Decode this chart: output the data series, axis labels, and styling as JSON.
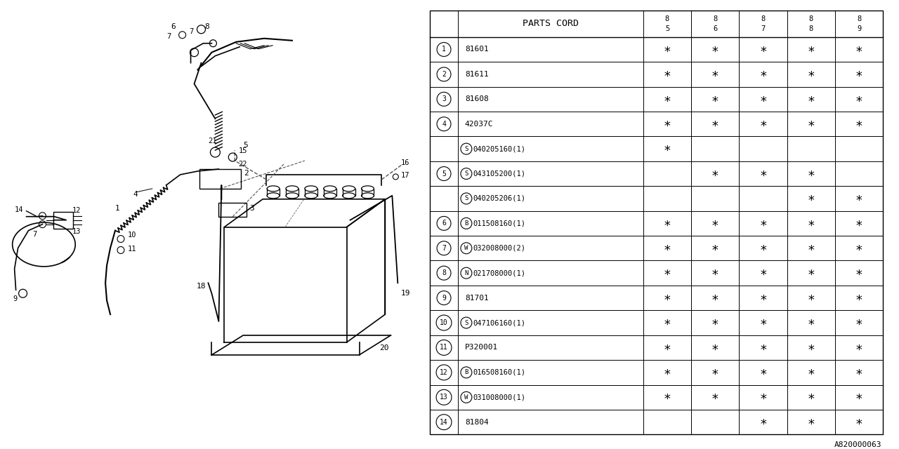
{
  "bg_color": "#ffffff",
  "header": "PARTS CORD",
  "columns": [
    "85",
    "86",
    "87",
    "88",
    "89"
  ],
  "rows": [
    {
      "num": "1",
      "prefix": "",
      "part": "81601",
      "marks": [
        true,
        true,
        true,
        true,
        true
      ]
    },
    {
      "num": "2",
      "prefix": "",
      "part": "81611",
      "marks": [
        true,
        true,
        true,
        true,
        true
      ]
    },
    {
      "num": "3",
      "prefix": "",
      "part": "81608",
      "marks": [
        true,
        true,
        true,
        true,
        true
      ]
    },
    {
      "num": "4",
      "prefix": "",
      "part": "42037C",
      "marks": [
        true,
        true,
        true,
        true,
        true
      ]
    },
    {
      "num": "",
      "prefix": "S",
      "part": "040205160(1)",
      "marks": [
        true,
        false,
        false,
        false,
        false
      ]
    },
    {
      "num": "5",
      "prefix": "S",
      "part": "043105200(1)",
      "marks": [
        false,
        true,
        true,
        true,
        false
      ]
    },
    {
      "num": "",
      "prefix": "S",
      "part": "040205206(1)",
      "marks": [
        false,
        false,
        false,
        true,
        true
      ]
    },
    {
      "num": "6",
      "prefix": "B",
      "part": "011508160(1)",
      "marks": [
        true,
        true,
        true,
        true,
        true
      ]
    },
    {
      "num": "7",
      "prefix": "W",
      "part": "032008000(2)",
      "marks": [
        true,
        true,
        true,
        true,
        true
      ]
    },
    {
      "num": "8",
      "prefix": "N",
      "part": "021708000(1)",
      "marks": [
        true,
        true,
        true,
        true,
        true
      ]
    },
    {
      "num": "9",
      "prefix": "",
      "part": "81701",
      "marks": [
        true,
        true,
        true,
        true,
        true
      ]
    },
    {
      "num": "10",
      "prefix": "S",
      "part": "047106160(1)",
      "marks": [
        true,
        true,
        true,
        true,
        true
      ]
    },
    {
      "num": "11",
      "prefix": "",
      "part": "P320001",
      "marks": [
        true,
        true,
        true,
        true,
        true
      ]
    },
    {
      "num": "12",
      "prefix": "B",
      "part": "016508160(1)",
      "marks": [
        true,
        true,
        true,
        true,
        true
      ]
    },
    {
      "num": "13",
      "prefix": "W",
      "part": "031008000(1)",
      "marks": [
        true,
        true,
        true,
        true,
        true
      ]
    },
    {
      "num": "14",
      "prefix": "",
      "part": "81804",
      "marks": [
        false,
        false,
        true,
        true,
        true
      ]
    }
  ],
  "footer_code": "A820000063",
  "line_color": "#000000",
  "text_color": "#000000"
}
